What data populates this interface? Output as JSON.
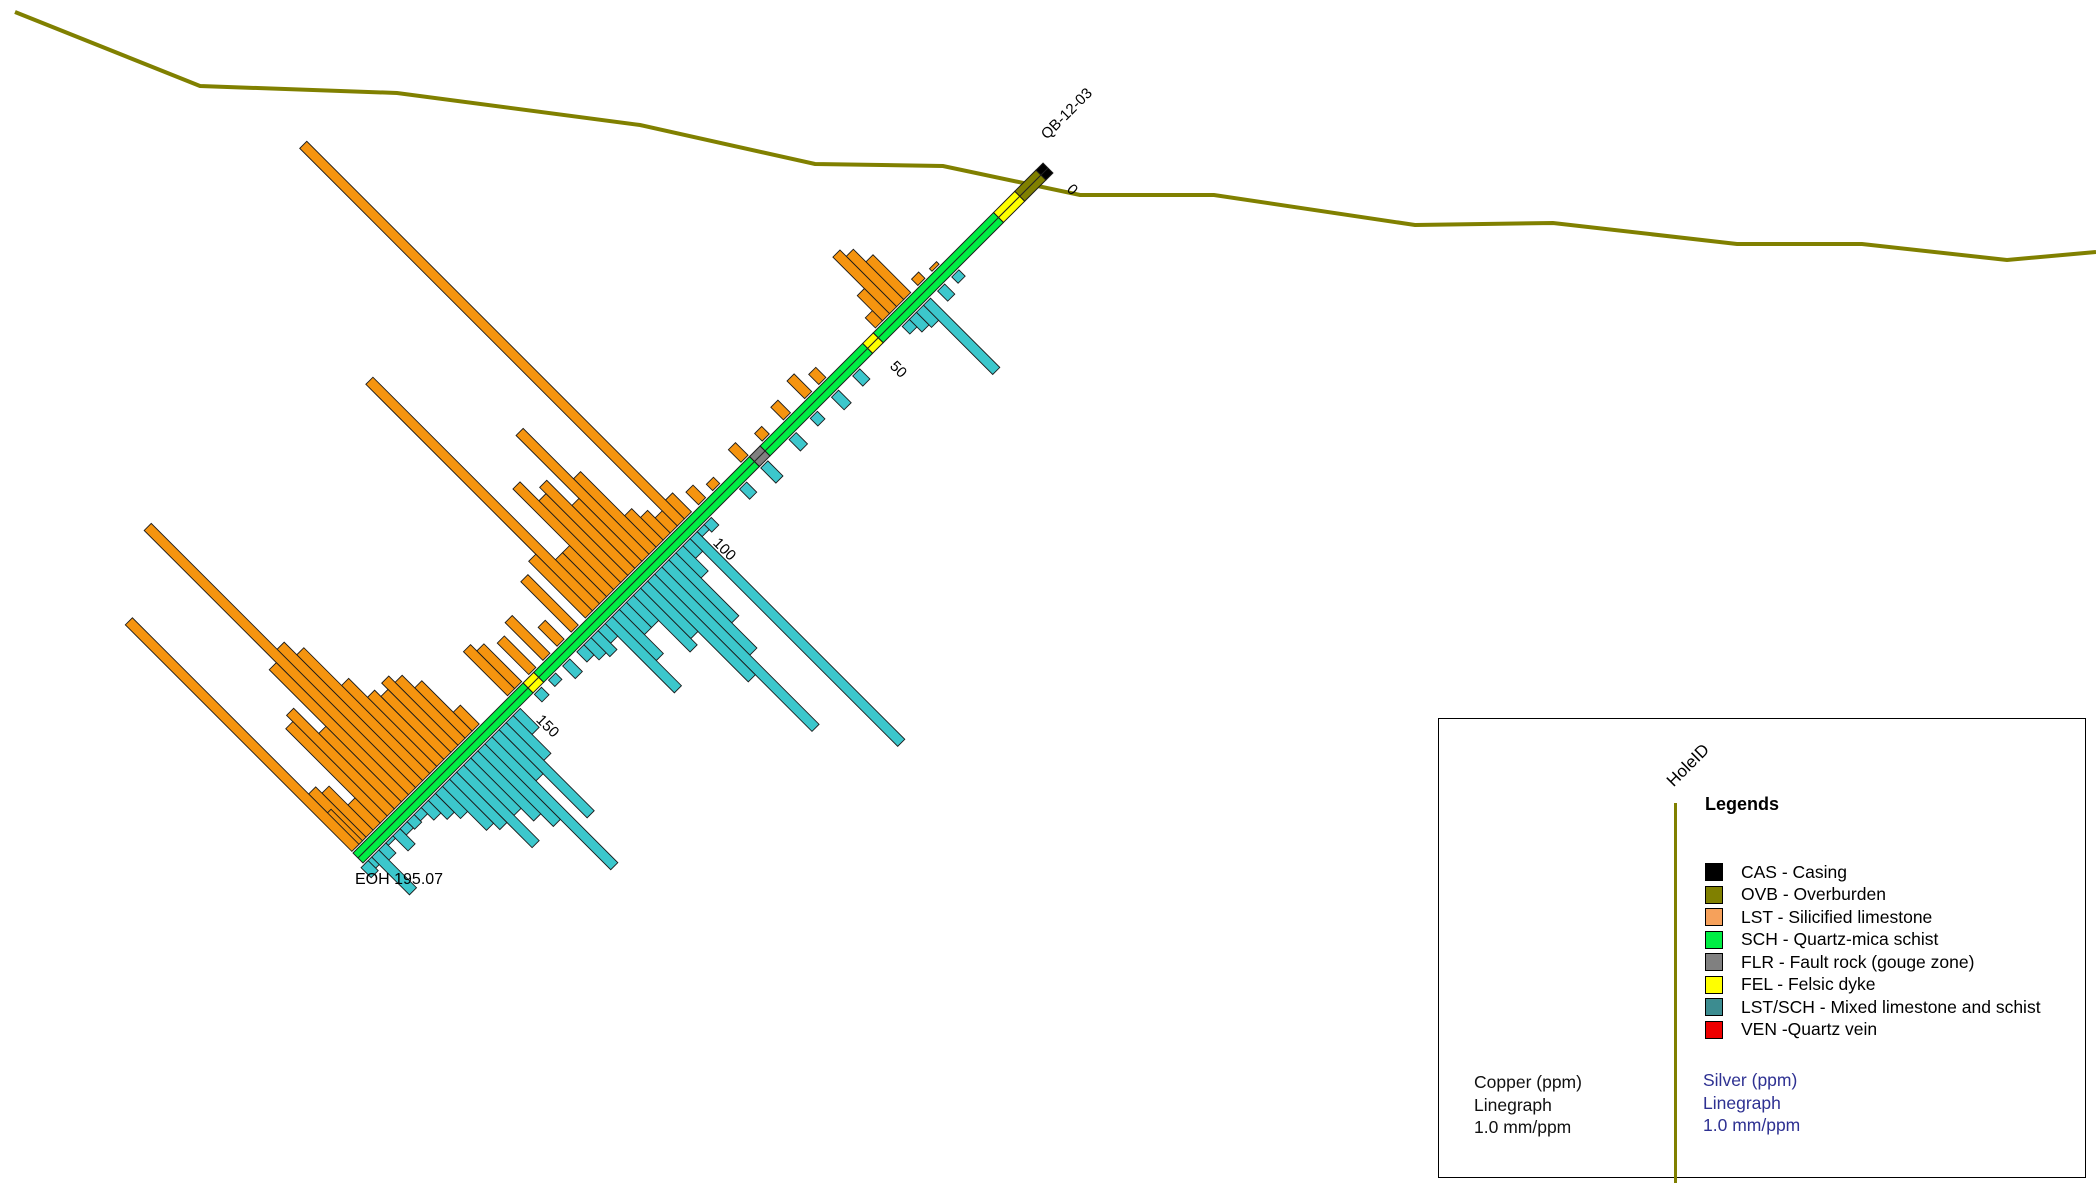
{
  "hole": {
    "hole_id": "QB-12-03",
    "eoh_label": "EOH 195.07",
    "depth_ticks": [
      {
        "depth": 0,
        "label": "0"
      },
      {
        "depth": 50,
        "label": "50"
      },
      {
        "depth": 100,
        "label": "100"
      },
      {
        "depth": 150,
        "label": "150"
      }
    ]
  },
  "colors": {
    "topography": "#808000",
    "copper": "#F5940F",
    "silver": "#3CC7CC",
    "schist": "#00EE44",
    "casing": "#000000",
    "overburden": "#808000",
    "felsic": "#FFFF00"
  },
  "lithology_intervals": [
    {
      "from": 0,
      "to": 2,
      "code": "CAS"
    },
    {
      "from": 2,
      "to": 8,
      "code": "OVB"
    },
    {
      "from": 8,
      "to": 14,
      "code": "FEL"
    },
    {
      "from": 14,
      "to": 48,
      "code": "SCH"
    },
    {
      "from": 48,
      "to": 51,
      "code": "FEL"
    },
    {
      "from": 51,
      "to": 80,
      "code": "SCH"
    },
    {
      "from": 80,
      "to": 83,
      "code": "FLR"
    },
    {
      "from": 83,
      "to": 144,
      "code": "SCH"
    },
    {
      "from": 144,
      "to": 147,
      "code": "FEL"
    },
    {
      "from": 147,
      "to": 195.07,
      "code": "SCH"
    }
  ],
  "copper_ppm": [
    [
      30,
      2
    ],
    [
      34,
      5
    ],
    [
      38,
      30
    ],
    [
      40,
      40
    ],
    [
      42,
      45
    ],
    [
      44,
      20
    ],
    [
      46,
      8
    ],
    [
      62,
      8
    ],
    [
      66,
      14
    ],
    [
      72,
      10
    ],
    [
      78,
      6
    ],
    [
      84,
      10
    ],
    [
      92,
      5
    ],
    [
      96,
      10
    ],
    [
      100,
      15
    ],
    [
      102,
      300
    ],
    [
      104,
      12
    ],
    [
      106,
      18
    ],
    [
      108,
      25
    ],
    [
      110,
      60
    ],
    [
      112,
      100
    ],
    [
      114,
      50
    ],
    [
      116,
      70
    ],
    [
      118,
      65
    ],
    [
      120,
      80
    ],
    [
      122,
      35
    ],
    [
      124,
      35
    ],
    [
      126,
      180
    ],
    [
      128,
      45
    ],
    [
      132,
      40
    ],
    [
      136,
      15
    ],
    [
      140,
      30
    ],
    [
      144,
      25
    ],
    [
      148,
      30
    ],
    [
      150,
      35
    ],
    [
      160,
      15
    ],
    [
      162,
      40
    ],
    [
      164,
      50
    ],
    [
      166,
      55
    ],
    [
      168,
      50
    ],
    [
      170,
      55
    ],
    [
      172,
      70
    ],
    [
      174,
      100
    ],
    [
      176,
      110
    ],
    [
      178,
      210
    ],
    [
      180,
      105
    ],
    [
      182,
      60
    ],
    [
      184,
      80
    ],
    [
      186,
      75
    ],
    [
      188,
      20
    ],
    [
      190,
      35
    ],
    [
      192,
      40
    ],
    [
      193,
      25
    ],
    [
      194,
      180
    ]
  ],
  "silver_ppm": [
    [
      28,
      5
    ],
    [
      32,
      8
    ],
    [
      36,
      55
    ],
    [
      38,
      12
    ],
    [
      40,
      10
    ],
    [
      42,
      6
    ],
    [
      56,
      8
    ],
    [
      62,
      10
    ],
    [
      68,
      6
    ],
    [
      74,
      9
    ],
    [
      82,
      12
    ],
    [
      88,
      8
    ],
    [
      98,
      6
    ],
    [
      100,
      4
    ],
    [
      102,
      165
    ],
    [
      104,
      10
    ],
    [
      106,
      20
    ],
    [
      108,
      50
    ],
    [
      110,
      70
    ],
    [
      112,
      125
    ],
    [
      114,
      80
    ],
    [
      116,
      40
    ],
    [
      118,
      45
    ],
    [
      120,
      20
    ],
    [
      122,
      20
    ],
    [
      124,
      35
    ],
    [
      126,
      55
    ],
    [
      128,
      10
    ],
    [
      130,
      15
    ],
    [
      132,
      12
    ],
    [
      134,
      8
    ],
    [
      138,
      10
    ],
    [
      142,
      5
    ],
    [
      146,
      6
    ],
    [
      152,
      15
    ],
    [
      154,
      30
    ],
    [
      156,
      70
    ],
    [
      158,
      35
    ],
    [
      160,
      100
    ],
    [
      162,
      60
    ],
    [
      164,
      50
    ],
    [
      166,
      40
    ],
    [
      168,
      60
    ],
    [
      170,
      40
    ],
    [
      172,
      35
    ],
    [
      174,
      20
    ],
    [
      176,
      15
    ],
    [
      178,
      10
    ],
    [
      180,
      5
    ],
    [
      182,
      6
    ],
    [
      184,
      5
    ],
    [
      186,
      12
    ],
    [
      188,
      2
    ],
    [
      190,
      8
    ],
    [
      192,
      30
    ],
    [
      194,
      6
    ],
    [
      195,
      8
    ]
  ],
  "legend": {
    "holeid_label": "HoleID",
    "title": "Legends",
    "items": [
      {
        "code": "CAS",
        "text": "CAS - Casing",
        "color": "#000000"
      },
      {
        "code": "OVB",
        "text": "OVB - Overburden",
        "color": "#808000"
      },
      {
        "code": "LST",
        "text": "LST - Silicified limestone",
        "color": "#F6A15B"
      },
      {
        "code": "SCH",
        "text": "SCH - Quartz-mica schist",
        "color": "#00EE44"
      },
      {
        "code": "FLR",
        "text": "FLR - Fault rock (gouge zone)",
        "color": "#808080"
      },
      {
        "code": "FEL",
        "text": "FEL - Felsic dyke",
        "color": "#FFFF00"
      },
      {
        "code": "LSTSCH",
        "text": "LST/SCH - Mixed limestone and schist",
        "color": "#3C8C90"
      },
      {
        "code": "VEN",
        "text": "VEN -Quartz vein",
        "color": "#EE0000"
      }
    ],
    "copper": {
      "line1": "Copper (ppm)",
      "line2": "Linegraph",
      "line3": "1.0 mm/ppm",
      "color": "#111111"
    },
    "silver": {
      "line1": "Silver (ppm)",
      "line2": "Linegraph",
      "line3": "1.0 mm/ppm",
      "color": "#2E3192"
    }
  }
}
